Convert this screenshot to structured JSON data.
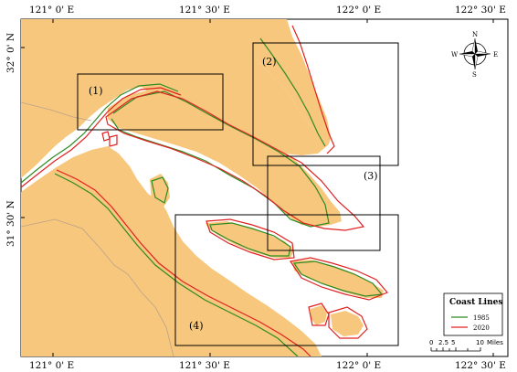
{
  "map": {
    "axis_labels": {
      "top": [
        "121° 0' E",
        "121° 30' E",
        "122° 0' E",
        "122° 30' E"
      ],
      "bottom": [
        "121° 0' E",
        "121° 30' E",
        "122° 0' E",
        "122° 30' E"
      ],
      "left": [
        "32° 0' N",
        "31° 30' N"
      ]
    },
    "study_boxes": [
      "(1)",
      "(2)",
      "(3)",
      "(4)"
    ],
    "north_arrow": {
      "n": "N",
      "s": "S",
      "e": "E",
      "w": "W"
    },
    "legend": {
      "title": "Coast Lines",
      "items": [
        {
          "label": "1985",
          "color": "#2e8b22"
        },
        {
          "label": "2020",
          "color": "#e02020"
        }
      ]
    },
    "scale_bar": {
      "ticks": [
        "0",
        "2.5",
        "5",
        "10"
      ],
      "unit": "Miles"
    },
    "colors": {
      "land": "#f7c77d",
      "water": "#ffffff",
      "coast_1985": "#2e8b22",
      "coast_2020": "#e02020",
      "boundary": "#b9a38a"
    }
  }
}
